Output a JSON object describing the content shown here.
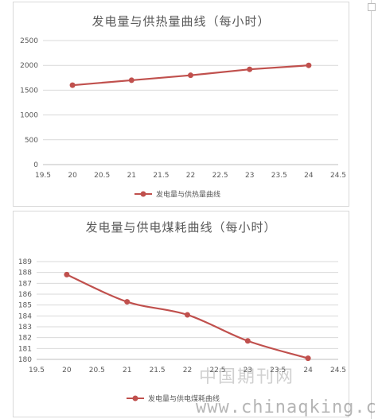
{
  "chart_data": [
    {
      "type": "line",
      "title": "发电量与供热量曲线（每小时）",
      "x": [
        20,
        21,
        22,
        23,
        24
      ],
      "series": [
        {
          "name": "发电量与供热量曲线",
          "values": [
            1600,
            1700,
            1800,
            1920,
            2000
          ]
        }
      ],
      "xlim": [
        19.5,
        24.5
      ],
      "ylim": [
        0,
        2500
      ],
      "x_ticks": [
        "19.5",
        "20",
        "20.5",
        "21",
        "21.5",
        "22",
        "22.5",
        "23",
        "23.5",
        "24",
        "24.5"
      ],
      "y_ticks": [
        "0",
        "500",
        "1000",
        "1500",
        "2000",
        "2500"
      ],
      "grid": true,
      "legend": "bottom",
      "smooth": false,
      "color": "#c0504d"
    },
    {
      "type": "line",
      "title": "发电量与供电煤耗曲线（每小时）",
      "x": [
        20,
        21,
        22,
        23,
        24
      ],
      "series": [
        {
          "name": "发电量与供电煤耗曲线",
          "values": [
            187.8,
            185.3,
            184.1,
            181.7,
            180.1
          ]
        }
      ],
      "xlim": [
        19.5,
        24.5
      ],
      "ylim": [
        180,
        189
      ],
      "x_ticks": [
        "19.5",
        "20",
        "20.5",
        "21",
        "21.5",
        "22",
        "22.5",
        "23",
        "23.5",
        "24",
        "24.5"
      ],
      "y_ticks": [
        "180",
        "181",
        "182",
        "183",
        "184",
        "185",
        "186",
        "187",
        "188",
        "189"
      ],
      "grid": true,
      "legend": "bottom",
      "smooth": true,
      "color": "#c0504d"
    }
  ],
  "watermark": {
    "cn": "中国期刊网",
    "url": "www.chinaqking.com"
  }
}
